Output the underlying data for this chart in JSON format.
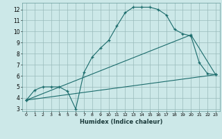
{
  "title": "",
  "xlabel": "Humidex (Indice chaleur)",
  "bg_color": "#cce8e8",
  "grid_color": "#99bbbb",
  "line_color": "#1a6b6b",
  "xlim": [
    -0.5,
    23.5
  ],
  "ylim": [
    2.8,
    12.6
  ],
  "xticks": [
    0,
    1,
    2,
    3,
    4,
    5,
    6,
    7,
    8,
    9,
    10,
    11,
    12,
    13,
    14,
    15,
    16,
    17,
    18,
    19,
    20,
    21,
    22,
    23
  ],
  "yticks": [
    3,
    4,
    5,
    6,
    7,
    8,
    9,
    10,
    11,
    12
  ],
  "line1_x": [
    0,
    1,
    2,
    3,
    4,
    5,
    6,
    7,
    8,
    9,
    10,
    11,
    12,
    13,
    14,
    15,
    16,
    17,
    18,
    19,
    20,
    21,
    22,
    23
  ],
  "line1_y": [
    3.8,
    4.7,
    5.0,
    5.0,
    5.0,
    4.6,
    3.0,
    6.3,
    7.7,
    8.5,
    9.2,
    10.5,
    11.7,
    12.2,
    12.2,
    12.2,
    12.0,
    11.5,
    10.2,
    9.8,
    9.6,
    7.2,
    6.2,
    6.1
  ],
  "line2_x": [
    0,
    23
  ],
  "line2_y": [
    3.8,
    6.1
  ],
  "line3_x": [
    0,
    20,
    23
  ],
  "line3_y": [
    3.8,
    9.7,
    6.1
  ]
}
